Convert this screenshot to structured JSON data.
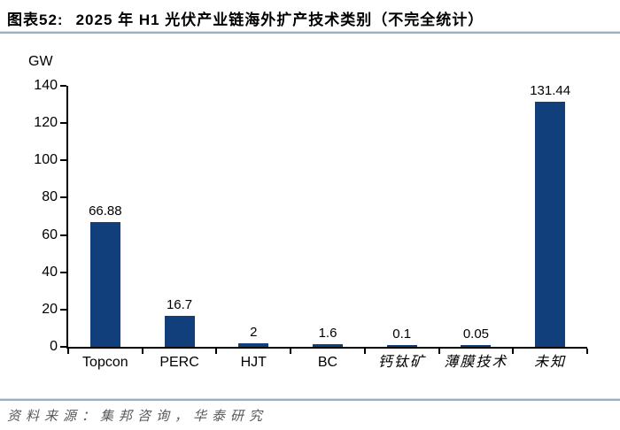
{
  "chart_data": {
    "type": "bar",
    "title": "图表52: 2025 年 H1 光伏产业链海外扩产技术类别（不完全统计）",
    "title_prefix": "图表52:",
    "title_main": "2025 年 H1 光伏产业链海外扩产技术类别（不完全统计）",
    "unit_label": "GW",
    "categories": [
      "Topcon",
      "PERC",
      "HJT",
      "BC",
      "钙钛矿",
      "薄膜技术",
      "未知"
    ],
    "values": [
      66.88,
      16.7,
      2,
      1.6,
      0.1,
      0.05,
      131.44
    ],
    "value_labels": [
      "66.88",
      "16.7",
      "2",
      "1.6",
      "0.1",
      "0.05",
      "131.44"
    ],
    "xlabel": "",
    "ylabel": "GW",
    "ylim": [
      0,
      140
    ],
    "y_ticks": [
      0,
      20,
      40,
      60,
      80,
      100,
      120,
      140
    ],
    "grid": false,
    "legend": "none"
  },
  "colors": {
    "bar": "#113F7C",
    "rule": "#98AFC6",
    "axis": "#000000",
    "footer_text": "#595959"
  },
  "footer": {
    "source": "资料来源：集邦咨询，华泰研究"
  }
}
